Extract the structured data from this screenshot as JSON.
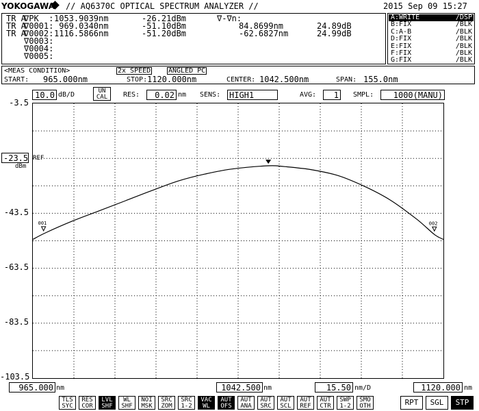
{
  "header": {
    "brand": "YOKOGAWA",
    "title": "// AQ6370C OPTICAL SPECTRUM ANALYZER //",
    "datetime": "2015 Sep 09 15:27"
  },
  "markers": {
    "delta_label": "∇-∇n:",
    "rows": [
      {
        "trace": "TR A",
        "name": "∇PK  :",
        "wl": "1053.9039nm",
        "level": "-26.21dBm",
        "dwl": "",
        "dlevel": ""
      },
      {
        "trace": "TR A",
        "name": "∇0001:",
        "wl": " 969.0340nm",
        "level": "-51.10dBm",
        "dwl": "84.8699nm",
        "dlevel": "24.89dB"
      },
      {
        "trace": "TR A",
        "name": "∇0002:",
        "wl": "1116.5866nm",
        "level": "-51.20dBm",
        "dwl": "-62.6827nm",
        "dlevel": "24.99dB"
      },
      {
        "trace": "",
        "name": "∇0003:",
        "wl": "",
        "level": "",
        "dwl": "",
        "dlevel": ""
      },
      {
        "trace": "",
        "name": "∇0004:",
        "wl": "",
        "level": "",
        "dwl": "",
        "dlevel": ""
      },
      {
        "trace": "",
        "name": "∇0005:",
        "wl": "",
        "level": "",
        "dwl": "",
        "dlevel": ""
      }
    ]
  },
  "traces": [
    {
      "label": "A:WRITE",
      "mode": "/DSP",
      "active": true
    },
    {
      "label": "B:FIX",
      "mode": "/BLK",
      "active": false
    },
    {
      "label": "C:A-B",
      "mode": "/BLK",
      "active": false
    },
    {
      "label": "D:FIX",
      "mode": "/BLK",
      "active": false
    },
    {
      "label": "E:FIX",
      "mode": "/BLK",
      "active": false
    },
    {
      "label": "F:FIX",
      "mode": "/BLK",
      "active": false
    },
    {
      "label": "G:FIX",
      "mode": "/BLK",
      "active": false
    }
  ],
  "meas": {
    "heading": "<MEAS CONDITION>",
    "speed": "2x SPEED",
    "connector": "ANGLED PC",
    "start_label": "START:",
    "start": "965.000nm",
    "stop_label": "STOP:",
    "stop": "1120.000nm",
    "center_label": "CENTER:",
    "center": "1042.500nm",
    "span_label": "SPAN:",
    "span": "155.0nm"
  },
  "settings": {
    "scale": "10.0",
    "scale_unit": "dB/D",
    "uncal": "UN CAL",
    "res_label": "RES:",
    "res": "0.02",
    "res_unit": "nm",
    "sens_label": "SENS:",
    "sens": "HIGH1",
    "avg_label": "AVG:",
    "avg": "1",
    "smpl_label": "SMPL:",
    "smpl": "1000(MANU)"
  },
  "y_axis": {
    "ref_value": "-23.5",
    "ref_label": "REF",
    "unit": "dBm",
    "ticks": [
      "-3.5",
      "-43.5",
      "-63.5",
      "-83.5",
      "-103.5"
    ]
  },
  "x_axis": {
    "start": "965.000",
    "start_unit": "nm",
    "center": "1042.500",
    "center_unit": "nm",
    "per_div": "15.50",
    "per_div_unit": "nm/D",
    "stop": "1120.000",
    "stop_unit": "nm"
  },
  "trace_labels": {
    "m1": "001",
    "m2": "002"
  },
  "chart_data": {
    "type": "line",
    "x": [
      965.0,
      970.0,
      980.0,
      990.0,
      1000.0,
      1010.0,
      1020.0,
      1030.0,
      1040.0,
      1053.9,
      1060.0,
      1070.0,
      1080.0,
      1090.0,
      1100.0,
      1110.0,
      1116.6,
      1120.0
    ],
    "y": [
      -53.0,
      -50.5,
      -46.3,
      -42.6,
      -38.9,
      -35.2,
      -31.7,
      -29.2,
      -27.4,
      -26.2,
      -26.5,
      -27.6,
      -29.7,
      -33.6,
      -38.7,
      -45.7,
      -51.2,
      -53.0
    ],
    "xlim": [
      965.0,
      1120.0
    ],
    "ylim": [
      -103.5,
      -3.5
    ],
    "grid": true,
    "peak": {
      "x": 1053.9039,
      "y": -26.21
    },
    "markers": [
      {
        "x": 969.034,
        "y": -51.1
      },
      {
        "x": 1116.5866,
        "y": -51.2
      }
    ]
  },
  "softkeys": [
    {
      "l1": "TLS",
      "l2": "SYC",
      "on": false
    },
    {
      "l1": "RES",
      "l2": "COR",
      "on": false
    },
    {
      "l1": "LVL",
      "l2": "SHF",
      "on": true
    },
    {
      "l1": "WL",
      "l2": "SHF",
      "on": false
    },
    {
      "l1": "NOI",
      "l2": "MSK",
      "on": false
    },
    {
      "l1": "SRC",
      "l2": "ZOM",
      "on": false
    },
    {
      "l1": "SRC",
      "l2": "1-2",
      "on": false
    },
    {
      "l1": "VAC",
      "l2": "WL",
      "on": true
    },
    {
      "l1": "AUT",
      "l2": "OFS",
      "on": true
    },
    {
      "l1": "AUT",
      "l2": "ANA",
      "on": false
    },
    {
      "l1": "AUT",
      "l2": "SRC",
      "on": false
    },
    {
      "l1": "AUT",
      "l2": "SCL",
      "on": false
    },
    {
      "l1": "AUT",
      "l2": "REF",
      "on": false
    },
    {
      "l1": "AUT",
      "l2": "CTR",
      "on": false
    },
    {
      "l1": "SWP",
      "l2": "1-2",
      "on": false
    },
    {
      "l1": "SMO",
      "l2": "OTH",
      "on": false
    }
  ],
  "run_buttons": [
    {
      "label": "RPT",
      "on": false
    },
    {
      "label": "SGL",
      "on": false
    },
    {
      "label": "STP",
      "on": true
    }
  ]
}
